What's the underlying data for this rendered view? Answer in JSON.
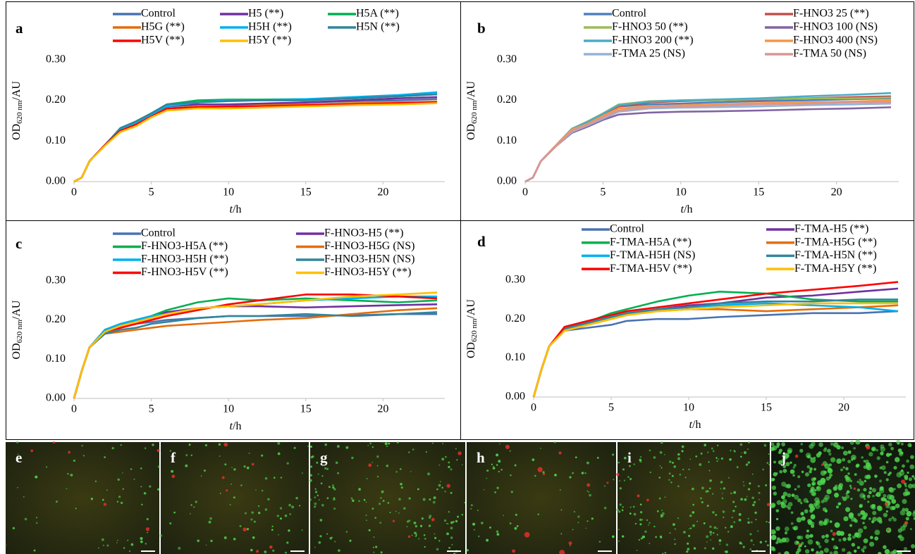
{
  "chart_data": [
    {
      "type": "line",
      "panel": "a",
      "legend_columns": 3,
      "y_label": {
        "main": "OD",
        "sub": "620 nm",
        "unit": "/AU"
      },
      "x_label": {
        "var": "t",
        "unit": "/h"
      },
      "xlim": [
        0,
        24
      ],
      "xticks": [
        0,
        5,
        10,
        15,
        20
      ],
      "ylim": [
        0,
        0.35
      ],
      "yticks": [
        {
          "value": 0,
          "label": "0.00"
        },
        {
          "value": 0.1,
          "label": "0.10"
        },
        {
          "value": 0.2,
          "label": "0.20"
        },
        {
          "value": 0.3,
          "label": "0.30"
        }
      ],
      "x": [
        0,
        0.5,
        1,
        2,
        3,
        4,
        5,
        6,
        8,
        10,
        12,
        15,
        18,
        21,
        23.5
      ],
      "series": [
        {
          "name": "Control",
          "color": "#4a72b0",
          "values": [
            0,
            0.01,
            0.05,
            0.09,
            0.13,
            0.145,
            0.165,
            0.185,
            0.19,
            0.19,
            0.19,
            0.195,
            0.198,
            0.2,
            0.203
          ]
        },
        {
          "name": "H5 (**)",
          "color": "#7030a0",
          "values": [
            0,
            0.01,
            0.05,
            0.09,
            0.13,
            0.145,
            0.165,
            0.185,
            0.19,
            0.19,
            0.192,
            0.195,
            0.2,
            0.205,
            0.208
          ]
        },
        {
          "name": "H5A (**)",
          "color": "#00b050",
          "values": [
            0,
            0.01,
            0.05,
            0.09,
            0.13,
            0.148,
            0.168,
            0.19,
            0.2,
            0.202,
            0.202,
            0.203,
            0.205,
            0.21,
            0.215
          ]
        },
        {
          "name": "H5G (**)",
          "color": "#e46c0a",
          "values": [
            0,
            0.01,
            0.05,
            0.09,
            0.128,
            0.142,
            0.162,
            0.18,
            0.185,
            0.185,
            0.188,
            0.19,
            0.193,
            0.195,
            0.197
          ]
        },
        {
          "name": "H5H (**)",
          "color": "#00b0f0",
          "values": [
            0,
            0.01,
            0.05,
            0.09,
            0.13,
            0.145,
            0.165,
            0.185,
            0.195,
            0.2,
            0.2,
            0.203,
            0.208,
            0.213,
            0.22
          ]
        },
        {
          "name": "H5N (**)",
          "color": "#31859c",
          "values": [
            0,
            0.01,
            0.05,
            0.09,
            0.132,
            0.148,
            0.168,
            0.19,
            0.195,
            0.198,
            0.2,
            0.2,
            0.205,
            0.21,
            0.215
          ]
        },
        {
          "name": "H5V (**)",
          "color": "#ff0000",
          "values": [
            0,
            0.01,
            0.05,
            0.09,
            0.125,
            0.14,
            0.16,
            0.18,
            0.183,
            0.185,
            0.185,
            0.188,
            0.19,
            0.193,
            0.195
          ]
        },
        {
          "name": "H5Y (**)",
          "color": "#ffc000",
          "values": [
            0,
            0.01,
            0.05,
            0.088,
            0.122,
            0.136,
            0.158,
            0.175,
            0.18,
            0.18,
            0.182,
            0.185,
            0.188,
            0.19,
            0.193
          ]
        }
      ]
    },
    {
      "type": "line",
      "panel": "b",
      "legend_columns": 2,
      "y_label": {
        "main": "OD",
        "sub": "620 nm",
        "unit": "/AU"
      },
      "x_label": {
        "var": "t",
        "unit": "/h"
      },
      "xlim": [
        0,
        24
      ],
      "xticks": [
        0,
        5,
        10,
        15,
        20
      ],
      "ylim": [
        0,
        0.35
      ],
      "yticks": [
        {
          "value": 0,
          "label": "0.00"
        },
        {
          "value": 0.1,
          "label": "0.10"
        },
        {
          "value": 0.2,
          "label": "0.20"
        },
        {
          "value": 0.3,
          "label": "0.30"
        }
      ],
      "x": [
        0,
        0.5,
        1,
        2,
        3,
        4,
        5,
        6,
        8,
        10,
        12,
        15,
        18,
        21,
        23.5
      ],
      "series": [
        {
          "name": "Control",
          "color": "#4f81bd",
          "values": [
            0,
            0.01,
            0.05,
            0.09,
            0.13,
            0.145,
            0.165,
            0.185,
            0.19,
            0.192,
            0.195,
            0.198,
            0.2,
            0.203,
            0.205
          ]
        },
        {
          "name": "F-HNO3 25 (**)",
          "color": "#c0504d",
          "values": [
            0,
            0.01,
            0.05,
            0.09,
            0.13,
            0.145,
            0.165,
            0.185,
            0.195,
            0.198,
            0.2,
            0.202,
            0.205,
            0.208,
            0.21
          ]
        },
        {
          "name": "F-HNO3 50 (**)",
          "color": "#9bbb59",
          "values": [
            0,
            0.01,
            0.05,
            0.09,
            0.13,
            0.148,
            0.168,
            0.19,
            0.198,
            0.2,
            0.2,
            0.203,
            0.205,
            0.205,
            0.207
          ]
        },
        {
          "name": "F-HNO3 100 (NS)",
          "color": "#8064a2",
          "values": [
            0,
            0.01,
            0.05,
            0.088,
            0.12,
            0.135,
            0.152,
            0.165,
            0.17,
            0.172,
            0.173,
            0.175,
            0.178,
            0.18,
            0.183
          ]
        },
        {
          "name": "F-HNO3 200 (**)",
          "color": "#4bacc6",
          "values": [
            0,
            0.01,
            0.05,
            0.09,
            0.13,
            0.147,
            0.167,
            0.188,
            0.197,
            0.2,
            0.202,
            0.205,
            0.21,
            0.214,
            0.218
          ]
        },
        {
          "name": "F-HNO3 400 (NS)",
          "color": "#f79646",
          "values": [
            0,
            0.01,
            0.05,
            0.09,
            0.128,
            0.142,
            0.162,
            0.18,
            0.185,
            0.188,
            0.19,
            0.193,
            0.195,
            0.197,
            0.2
          ]
        },
        {
          "name": "F-TMA 25 (NS)",
          "color": "#95b3d7",
          "values": [
            0,
            0.01,
            0.05,
            0.088,
            0.122,
            0.138,
            0.155,
            0.172,
            0.18,
            0.182,
            0.183,
            0.185,
            0.188,
            0.19,
            0.192
          ]
        },
        {
          "name": "F-TMA 50 (NS)",
          "color": "#d99694",
          "values": [
            0,
            0.01,
            0.05,
            0.088,
            0.125,
            0.14,
            0.158,
            0.175,
            0.183,
            0.185,
            0.187,
            0.19,
            0.192,
            0.195,
            0.196
          ]
        }
      ]
    },
    {
      "type": "line",
      "panel": "c",
      "legend_columns": 2,
      "y_label": {
        "main": "OD",
        "sub": "620 nm",
        "unit": "/AU"
      },
      "x_label": {
        "var": "t",
        "unit": "/h"
      },
      "xlim": [
        0,
        24
      ],
      "xticks": [
        0,
        5,
        10,
        15,
        20
      ],
      "ylim": [
        0,
        0.35
      ],
      "yticks": [
        {
          "value": 0,
          "label": "0.00"
        },
        {
          "value": 0.1,
          "label": "0.10"
        },
        {
          "value": 0.2,
          "label": "0.20"
        },
        {
          "value": 0.3,
          "label": "0.30"
        }
      ],
      "x": [
        0,
        0.5,
        1,
        2,
        3,
        4,
        5,
        6,
        8,
        10,
        12,
        15,
        18,
        21,
        23.5
      ],
      "series": [
        {
          "name": "Control",
          "color": "#4a72b0",
          "values": [
            0,
            0.07,
            0.13,
            0.17,
            0.18,
            0.19,
            0.195,
            0.2,
            0.205,
            0.21,
            0.21,
            0.21,
            0.212,
            0.215,
            0.215
          ]
        },
        {
          "name": "F-HNO3-H5 (**)",
          "color": "#7030a0",
          "values": [
            0,
            0.07,
            0.13,
            0.17,
            0.185,
            0.2,
            0.21,
            0.22,
            0.23,
            0.235,
            0.235,
            0.232,
            0.235,
            0.238,
            0.24
          ]
        },
        {
          "name": "F-HNO3-H5A (**)",
          "color": "#00b050",
          "values": [
            0,
            0.07,
            0.13,
            0.175,
            0.19,
            0.2,
            0.21,
            0.225,
            0.245,
            0.255,
            0.25,
            0.255,
            0.25,
            0.245,
            0.25
          ]
        },
        {
          "name": "F-HNO3-H5G (NS)",
          "color": "#e46c0a",
          "values": [
            0,
            0.07,
            0.13,
            0.165,
            0.17,
            0.175,
            0.18,
            0.185,
            0.19,
            0.195,
            0.2,
            0.205,
            0.215,
            0.225,
            0.23
          ]
        },
        {
          "name": "F-HNO3-H5H (**)",
          "color": "#00b0f0",
          "values": [
            0,
            0.07,
            0.13,
            0.175,
            0.19,
            0.2,
            0.21,
            0.215,
            0.23,
            0.235,
            0.24,
            0.25,
            0.255,
            0.26,
            0.26
          ]
        },
        {
          "name": "F-HNO3-H5N (NS)",
          "color": "#31859c",
          "values": [
            0,
            0.07,
            0.13,
            0.165,
            0.175,
            0.18,
            0.19,
            0.195,
            0.205,
            0.21,
            0.21,
            0.215,
            0.21,
            0.215,
            0.22
          ]
        },
        {
          "name": "F-HNO3-H5V (**)",
          "color": "#ff0000",
          "values": [
            0,
            0.07,
            0.13,
            0.17,
            0.18,
            0.19,
            0.2,
            0.21,
            0.225,
            0.24,
            0.25,
            0.265,
            0.265,
            0.26,
            0.255
          ]
        },
        {
          "name": "F-HNO3-H5Y (**)",
          "color": "#ffc000",
          "values": [
            0,
            0.07,
            0.13,
            0.17,
            0.185,
            0.195,
            0.205,
            0.215,
            0.23,
            0.235,
            0.24,
            0.25,
            0.26,
            0.265,
            0.27
          ]
        }
      ]
    },
    {
      "type": "line",
      "panel": "d",
      "legend_columns": 2,
      "y_label": {
        "main": "OD",
        "sub": "620 nm",
        "unit": "/AU"
      },
      "x_label": {
        "var": "t",
        "unit": "/h"
      },
      "xlim": [
        0,
        24
      ],
      "xticks": [
        0,
        5,
        10,
        15,
        20
      ],
      "ylim": [
        0,
        0.35
      ],
      "yticks": [
        {
          "value": 0,
          "label": "0.00"
        },
        {
          "value": 0.1,
          "label": "0.10"
        },
        {
          "value": 0.2,
          "label": "0.20"
        },
        {
          "value": 0.3,
          "label": "0.30"
        }
      ],
      "x": [
        0,
        0.5,
        1,
        2,
        3,
        4,
        5,
        6,
        8,
        10,
        12,
        15,
        18,
        21,
        23.5
      ],
      "series": [
        {
          "name": "Control",
          "color": "#4a72b0",
          "values": [
            0,
            0.07,
            0.13,
            0.17,
            0.175,
            0.18,
            0.185,
            0.195,
            0.2,
            0.2,
            0.205,
            0.21,
            0.215,
            0.215,
            0.22
          ]
        },
        {
          "name": "F-TMA-H5 (**)",
          "color": "#7030a0",
          "values": [
            0,
            0.07,
            0.13,
            0.175,
            0.185,
            0.19,
            0.2,
            0.21,
            0.225,
            0.235,
            0.24,
            0.255,
            0.26,
            0.27,
            0.278
          ]
        },
        {
          "name": "F-TMA-H5A (**)",
          "color": "#00b050",
          "values": [
            0,
            0.07,
            0.13,
            0.175,
            0.19,
            0.2,
            0.215,
            0.225,
            0.245,
            0.26,
            0.27,
            0.265,
            0.25,
            0.245,
            0.245
          ]
        },
        {
          "name": "F-TMA-H5G (**)",
          "color": "#e46c0a",
          "values": [
            0,
            0.07,
            0.13,
            0.17,
            0.18,
            0.19,
            0.2,
            0.21,
            0.22,
            0.225,
            0.225,
            0.22,
            0.225,
            0.23,
            0.235
          ]
        },
        {
          "name": "F-TMA-H5H (NS)",
          "color": "#00b0f0",
          "values": [
            0,
            0.07,
            0.13,
            0.175,
            0.185,
            0.195,
            0.205,
            0.215,
            0.225,
            0.23,
            0.235,
            0.24,
            0.235,
            0.23,
            0.22
          ]
        },
        {
          "name": "F-TMA-H5N (**)",
          "color": "#31859c",
          "values": [
            0,
            0.07,
            0.13,
            0.175,
            0.185,
            0.195,
            0.205,
            0.215,
            0.225,
            0.23,
            0.24,
            0.245,
            0.245,
            0.25,
            0.25
          ]
        },
        {
          "name": "F-TMA-H5V (**)",
          "color": "#ff0000",
          "values": [
            0,
            0.07,
            0.13,
            0.18,
            0.19,
            0.2,
            0.21,
            0.22,
            0.23,
            0.24,
            0.25,
            0.265,
            0.275,
            0.285,
            0.295
          ]
        },
        {
          "name": "F-TMA-H5Y (**)",
          "color": "#ffc000",
          "values": [
            0,
            0.07,
            0.13,
            0.17,
            0.18,
            0.19,
            0.2,
            0.21,
            0.22,
            0.225,
            0.23,
            0.235,
            0.24,
            0.24,
            0.24
          ]
        }
      ]
    }
  ],
  "image_panels": [
    "e",
    "f",
    "g",
    "h",
    "i",
    "j"
  ]
}
